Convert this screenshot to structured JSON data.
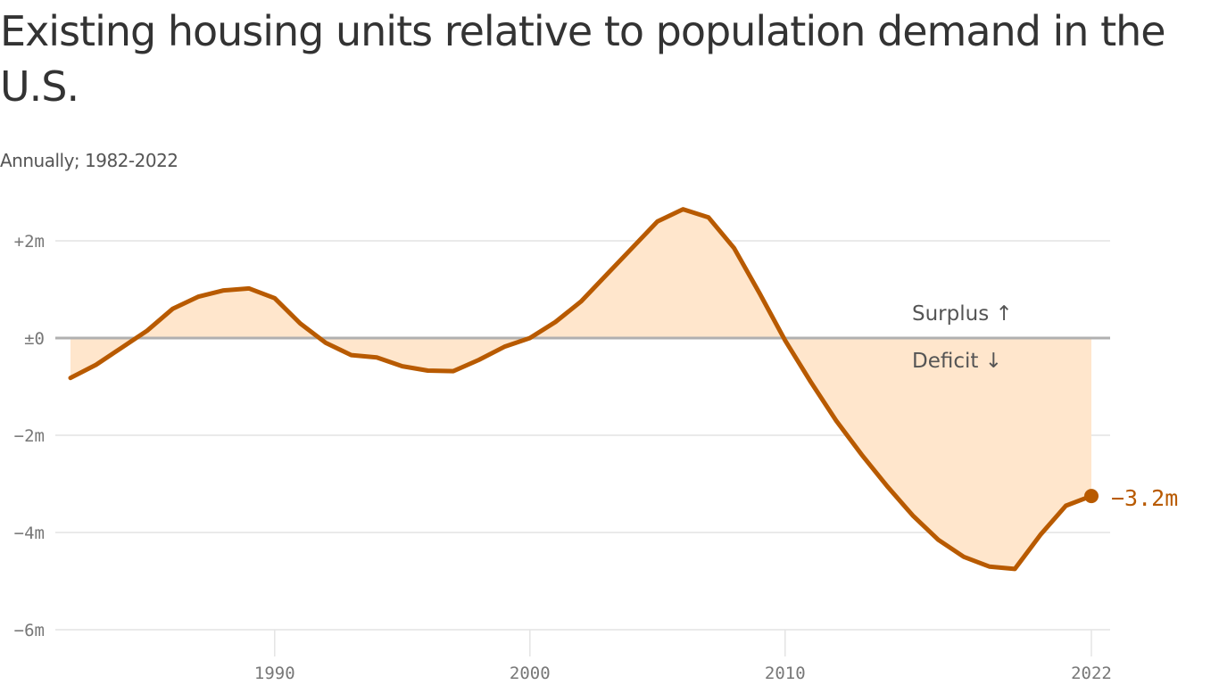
{
  "colors": {
    "line": "#b85a00",
    "area": "#ffe6cc",
    "grid": "#e4e4e4",
    "zero_line": "#b0b0b0",
    "tick_text": "#777777"
  },
  "chart_data": {
    "type": "area",
    "title": "Existing housing units relative to population demand in the U.S.",
    "subtitle": "Annually; 1982-2022",
    "xlabel": "",
    "ylabel": "",
    "x": [
      1982,
      1983,
      1984,
      1985,
      1986,
      1987,
      1988,
      1989,
      1990,
      1991,
      1992,
      1993,
      1994,
      1995,
      1996,
      1997,
      1998,
      1999,
      2000,
      2001,
      2002,
      2003,
      2004,
      2005,
      2006,
      2007,
      2008,
      2009,
      2010,
      2011,
      2012,
      2013,
      2014,
      2015,
      2016,
      2017,
      2018,
      2019,
      2020,
      2021,
      2022
    ],
    "series": [
      {
        "values": [
          -0.82,
          -0.55,
          -0.2,
          0.15,
          0.6,
          0.85,
          0.98,
          1.02,
          0.82,
          0.3,
          -0.1,
          -0.35,
          -0.4,
          -0.58,
          -0.67,
          -0.68,
          -0.45,
          -0.18,
          0.0,
          0.33,
          0.75,
          1.3,
          1.85,
          2.4,
          2.65,
          2.48,
          1.85,
          0.92,
          -0.05,
          -0.9,
          -1.7,
          -2.4,
          -3.05,
          -3.65,
          -4.15,
          -4.5,
          -4.7,
          -4.75,
          -4.05,
          -3.45,
          -3.25
        ]
      }
    ],
    "ylim": [
      -6,
      2.8
    ],
    "xlim": [
      1982,
      2022
    ],
    "y_ticks": [
      2,
      0,
      -2,
      -4,
      -6
    ],
    "y_tick_labels": [
      "+2m",
      "±0",
      "−2m",
      "−4m",
      "−6m"
    ],
    "x_ticks": [
      1990,
      2000,
      2010,
      2022
    ],
    "x_tick_labels": [
      "1990",
      "2000",
      "2010",
      "2022"
    ],
    "grid": true,
    "annotations": {
      "surplus": "Surplus ↑",
      "deficit": "Deficit ↓",
      "end_value": "−3.2m"
    },
    "legend": "none"
  }
}
